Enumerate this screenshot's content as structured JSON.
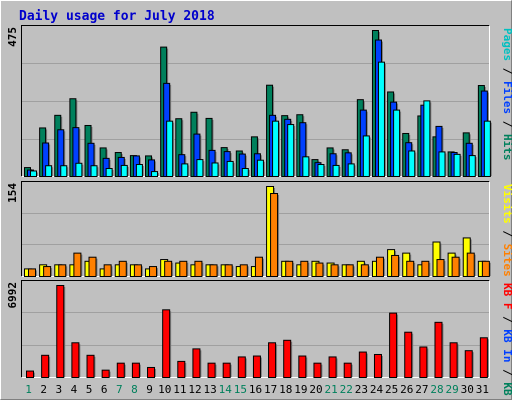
{
  "title": "Daily usage for July 2018",
  "colors": {
    "bg": "#c0c0c0",
    "title": "#0000cc",
    "hits": "#00805c",
    "files": "#0040ff",
    "pages": "#00ffff",
    "visits": "#ffff00",
    "sites": "#ff8000",
    "kbytes": "#ff0000",
    "weekend_day": "#00805c",
    "weekday": "#000000"
  },
  "chart_data": [
    {
      "type": "bar",
      "panel": "top",
      "ymax_label": "475",
      "right_label": [
        {
          "text": "Pages",
          "color": "#00c0c0"
        },
        {
          "text": " / ",
          "color": "#000000"
        },
        {
          "text": "Files",
          "color": "#0040ff"
        },
        {
          "text": " / ",
          "color": "#000000"
        },
        {
          "text": "Hits",
          "color": "#00805c"
        }
      ],
      "ylim": [
        0,
        475
      ],
      "series": [
        {
          "name": "Hits",
          "values": [
            29,
            158,
            199,
            253,
            166,
            93,
            78,
            68,
            67,
            421,
            188,
            209,
            189,
            94,
            83,
            129,
            297,
            198,
            201,
            55,
            93,
            87,
            250,
            475,
            275,
            140,
            197,
            129,
            80,
            142,
            296
          ]
        },
        {
          "name": "Files",
          "values": [
            21,
            109,
            152,
            159,
            108,
            59,
            62,
            67,
            54,
            303,
            71,
            138,
            85,
            81,
            73,
            74,
            199,
            186,
            175,
            45,
            74,
            77,
            216,
            444,
            242,
            110,
            232,
            163,
            78,
            108,
            278
          ]
        },
        {
          "name": "Pages",
          "values": [
            18,
            35,
            35,
            43,
            35,
            26,
            36,
            39,
            16,
            180,
            41,
            55,
            44,
            49,
            26,
            53,
            180,
            169,
            64,
            39,
            36,
            41,
            132,
            372,
            216,
            83,
            246,
            80,
            72,
            68,
            180
          ]
        }
      ]
    },
    {
      "type": "bar",
      "panel": "middle",
      "ymax_label": "154",
      "right_label": [
        {
          "text": "Visits",
          "color": "#ffff00"
        },
        {
          "text": " / ",
          "color": "#000000"
        },
        {
          "text": "Sites",
          "color": "#ff8000"
        }
      ],
      "ylim": [
        0,
        154
      ],
      "series": [
        {
          "name": "Visits",
          "values": [
            13,
            20,
            20,
            20,
            26,
            13,
            20,
            20,
            13,
            29,
            23,
            20,
            20,
            20,
            17,
            17,
            154,
            26,
            20,
            26,
            23,
            20,
            26,
            26,
            46,
            40,
            20,
            59,
            40,
            66,
            26
          ]
        },
        {
          "name": "Sites",
          "values": [
            13,
            17,
            20,
            40,
            33,
            20,
            26,
            20,
            17,
            26,
            26,
            26,
            20,
            20,
            20,
            33,
            142,
            26,
            26,
            23,
            20,
            20,
            20,
            33,
            36,
            26,
            26,
            29,
            33,
            40,
            26
          ]
        }
      ]
    },
    {
      "type": "bar",
      "panel": "bottom",
      "ymax_label": "6992",
      "right_label": [
        {
          "text": "KB F",
          "color": "#ff0000"
        },
        {
          "text": " / ",
          "color": "#000000"
        },
        {
          "text": "KB In",
          "color": "#0040ff"
        },
        {
          "text": " / ",
          "color": "#000000"
        },
        {
          "text": "KB Out",
          "color": "#00805c"
        }
      ],
      "ylim": [
        0,
        6992
      ],
      "series": [
        {
          "name": "KB F",
          "values": [
            489,
            1687,
            6992,
            2639,
            1687,
            558,
            1089,
            1089,
            762,
            5144,
            1224,
            2175,
            1089,
            1089,
            1563,
            1632,
            2639,
            2828,
            1632,
            1089,
            1563,
            1089,
            1934,
            1749,
            4893,
            3442,
            2319,
            4193,
            2639,
            2038,
            3019
          ]
        }
      ]
    }
  ],
  "x_categories": [
    "1",
    "2",
    "3",
    "4",
    "5",
    "6",
    "7",
    "8",
    "9",
    "10",
    "11",
    "12",
    "13",
    "14",
    "15",
    "16",
    "17",
    "18",
    "19",
    "20",
    "21",
    "22",
    "23",
    "24",
    "25",
    "26",
    "27",
    "28",
    "29",
    "30",
    "31"
  ],
  "weekend_days": [
    "1",
    "7",
    "8",
    "14",
    "15",
    "21",
    "22",
    "28",
    "29"
  ]
}
